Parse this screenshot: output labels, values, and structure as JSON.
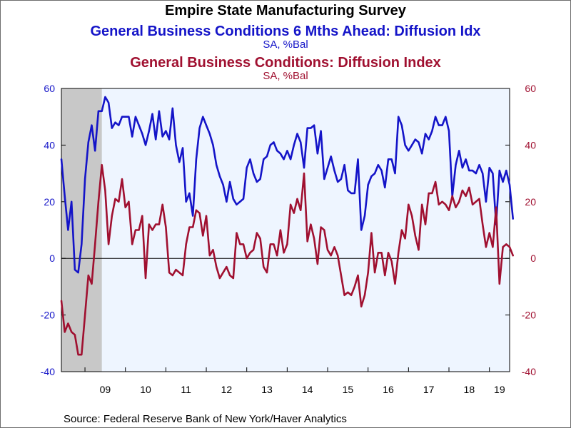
{
  "title": "Empire State Manufacturing Survey",
  "source": "Source:  Federal Reserve Bank of New York/Haver Analytics",
  "chart_data": {
    "type": "line",
    "title": "Empire State Manufacturing Survey",
    "left_axis": {
      "ylim": [
        -40,
        60
      ],
      "ticks": [
        "60",
        "40",
        "20",
        "0",
        "-20",
        "-40"
      ],
      "color": "#1414c8"
    },
    "right_axis": {
      "ylim": [
        -40,
        60
      ],
      "ticks": [
        "60",
        "40",
        "20",
        "0",
        "-20",
        "-40"
      ],
      "color": "#a01030"
    },
    "x_ticks": [
      "09",
      "10",
      "11",
      "12",
      "13",
      "14",
      "15",
      "16",
      "17",
      "18",
      "19"
    ],
    "x_range": [
      "2008-06",
      "2019-07"
    ],
    "recession_shading": {
      "start": "2008-06",
      "end": "2009-06",
      "color": "#c8c8c8"
    },
    "plot_background": "#eef5ff",
    "zero_line": 0,
    "series": [
      {
        "name": "General Business Conditions 6 Mths Ahead: Diffusion Idx",
        "unit": "SA, %Bal",
        "axis": "left",
        "color": "#1414c8",
        "start": "2008-06",
        "values": [
          35,
          22,
          10,
          20,
          -4,
          -5,
          5,
          28,
          41,
          47,
          38,
          52,
          52,
          57,
          55,
          46,
          48,
          47,
          50,
          50,
          50,
          43,
          50,
          47,
          44,
          40,
          45,
          51,
          42,
          52,
          43,
          45,
          42,
          53,
          40,
          34,
          39,
          20,
          23,
          15,
          35,
          46,
          50,
          47,
          44,
          40,
          33,
          29,
          26,
          20,
          27,
          21,
          19,
          20,
          21,
          32,
          35,
          30,
          27,
          28,
          35,
          36,
          40,
          41,
          38,
          37,
          35,
          38,
          35,
          40,
          44,
          41,
          32,
          46,
          46,
          47,
          37,
          45,
          28,
          32,
          36,
          31,
          27,
          28,
          33,
          24,
          23,
          23,
          35,
          10,
          15,
          26,
          29,
          30,
          33,
          31,
          25,
          35,
          35,
          30,
          50,
          47,
          40,
          38,
          40,
          42,
          41,
          37,
          44,
          42,
          45,
          50,
          47,
          47,
          50,
          45,
          22,
          33,
          38,
          32,
          35,
          31,
          31,
          30,
          33,
          30,
          20,
          32,
          30,
          12,
          31,
          27,
          31,
          26,
          14
        ]
      },
      {
        "name": "General Business Conditions: Diffusion Index",
        "unit": "SA, %Bal",
        "axis": "right",
        "color": "#a01030",
        "start": "2008-06",
        "values": [
          -15,
          -26,
          -23,
          -26,
          -27,
          -34,
          -34,
          -20,
          -6,
          -9,
          5,
          20,
          33,
          24,
          5,
          15,
          21,
          20,
          28,
          18,
          20,
          5,
          10,
          10,
          15,
          -7,
          12,
          10,
          12,
          12,
          19,
          11,
          -5,
          -6,
          -4,
          -5,
          -6,
          5,
          11,
          11,
          17,
          16,
          8,
          15,
          1,
          3,
          -3,
          -7,
          -5,
          -3,
          -6,
          -7,
          9,
          5,
          5,
          0,
          2,
          3,
          9,
          7,
          -3,
          -5,
          5,
          5,
          1,
          10,
          2,
          5,
          19,
          16,
          21,
          17,
          30,
          6,
          12,
          7,
          -2,
          11,
          10,
          3,
          1,
          4,
          1,
          -6,
          -13,
          -12,
          -13,
          -10,
          -6,
          -17,
          -13,
          -5,
          9,
          -5,
          2,
          2,
          -6,
          2,
          -1,
          -9,
          2,
          10,
          7,
          19,
          15,
          8,
          3,
          19,
          12,
          23,
          23,
          27,
          19,
          20,
          19,
          17,
          22,
          18,
          20,
          24,
          22,
          25,
          19,
          20,
          21,
          12,
          4,
          9,
          4,
          18,
          -9,
          4,
          5,
          4,
          1
        ]
      }
    ]
  },
  "legend": {
    "series1_title": "General Business Conditions 6 Mths Ahead: Diffusion Idx",
    "series1_unit": "SA, %Bal",
    "series2_title": "General Business Conditions: Diffusion Index",
    "series2_unit": "SA, %Bal"
  }
}
